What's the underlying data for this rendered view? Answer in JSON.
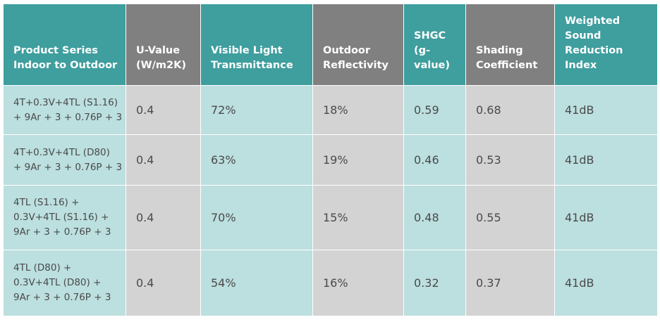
{
  "headers": [
    [
      "Product Series",
      "Indoor to Outdoor"
    ],
    [
      "U-Value",
      "(W/m2K)"
    ],
    [
      "Visible Light",
      "Transmittance"
    ],
    [
      "Outdoor",
      "Reflectivity"
    ],
    [
      "SHGC",
      "(g-",
      "value)"
    ],
    [
      "Shading",
      "Coefficient"
    ],
    [
      "Weighted",
      "Sound",
      "Reduction",
      "Index"
    ]
  ],
  "rows": [
    {
      "series": [
        "4T+0.3V+4TL (S1.16)",
        "+ 9Ar + 3 + 0.76P + 3"
      ],
      "u_value": "0.4",
      "vlt": "72%",
      "reflectivity": "18%",
      "shgc": "0.59",
      "shading": "0.68",
      "sound": "41dB"
    },
    {
      "series": [
        "4T+0.3V+4TL (D80)",
        "+ 9Ar + 3 + 0.76P + 3"
      ],
      "u_value": "0.4",
      "vlt": "63%",
      "reflectivity": "19%",
      "shgc": "0.46",
      "shading": "0.53",
      "sound": "41dB"
    },
    {
      "series": [
        "4TL (S1.16) +",
        "0.3V+4TL (S1.16) +",
        "9Ar + 3 + 0.76P + 3"
      ],
      "u_value": "0.4",
      "vlt": "70%",
      "reflectivity": "15%",
      "shgc": "0.48",
      "shading": "0.55",
      "sound": "41dB"
    },
    {
      "series": [
        "4TL (D80) +",
        "0.3V+4TL (D80) +",
        "9Ar + 3 + 0.76P + 3"
      ],
      "u_value": "0.4",
      "vlt": "54%",
      "reflectivity": "16%",
      "shgc": "0.32",
      "shading": "0.37",
      "sound": "41dB"
    }
  ],
  "colors": {
    "header_teal": "#3f9e9e",
    "header_grey": "#808080",
    "cell_teal": "#bcdfdf",
    "cell_grey": "#d3d3d3",
    "text": "#4a4a4a"
  }
}
